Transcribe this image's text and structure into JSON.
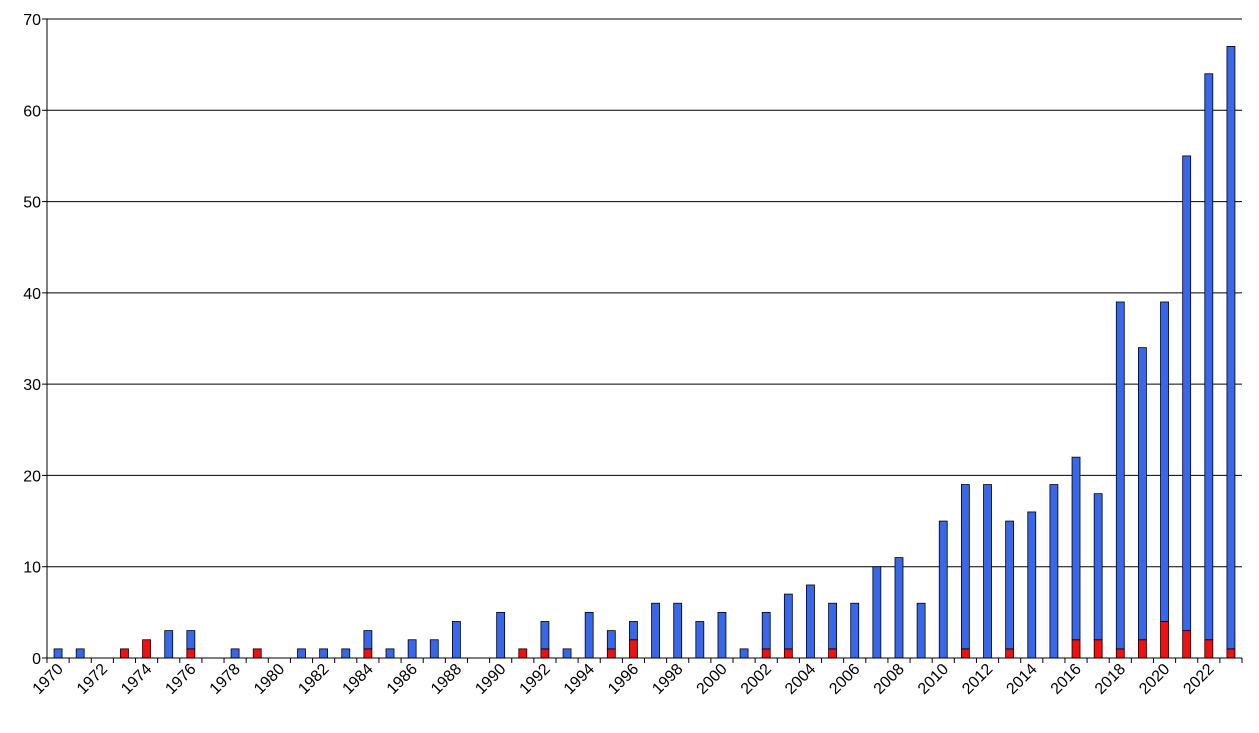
{
  "chart_data": {
    "type": "bar",
    "stacked": true,
    "grid": true,
    "ylim": [
      0,
      70
    ],
    "y_ticks": [
      "0",
      "10",
      "20",
      "30",
      "40",
      "50",
      "60",
      "70"
    ],
    "x_ticks": [
      "1970",
      "1972",
      "1974",
      "1976",
      "1978",
      "1980",
      "1982",
      "1984",
      "1986",
      "1988",
      "1990",
      "1992",
      "1994",
      "1996",
      "1998",
      "2000",
      "2002",
      "2004",
      "2006",
      "2008",
      "2010",
      "2012",
      "2014",
      "2016",
      "2018",
      "2020",
      "2022"
    ],
    "categories": [
      1970,
      1971,
      1972,
      1973,
      1974,
      1975,
      1976,
      1977,
      1978,
      1979,
      1980,
      1981,
      1982,
      1983,
      1984,
      1985,
      1986,
      1987,
      1988,
      1989,
      1990,
      1991,
      1992,
      1993,
      1994,
      1995,
      1996,
      1997,
      1998,
      1999,
      2000,
      2001,
      2002,
      2003,
      2004,
      2005,
      2006,
      2007,
      2008,
      2009,
      2010,
      2011,
      2012,
      2013,
      2014,
      2015,
      2016,
      2017,
      2018,
      2019,
      2020,
      2021,
      2022,
      2023
    ],
    "series": [
      {
        "color": "#ee1111",
        "values": [
          0,
          0,
          0,
          1,
          2,
          0,
          1,
          0,
          0,
          1,
          0,
          0,
          0,
          0,
          1,
          0,
          0,
          0,
          0,
          0,
          0,
          1,
          1,
          0,
          0,
          1,
          2,
          0,
          0,
          0,
          0,
          0,
          1,
          1,
          0,
          1,
          0,
          0,
          0,
          0,
          0,
          1,
          0,
          1,
          0,
          0,
          2,
          2,
          1,
          2,
          4,
          3,
          2,
          1
        ]
      },
      {
        "color": "#3a66e8",
        "values": [
          1,
          1,
          0,
          0,
          0,
          3,
          2,
          0,
          1,
          0,
          0,
          1,
          1,
          1,
          2,
          1,
          2,
          2,
          4,
          0,
          5,
          0,
          3,
          1,
          5,
          2,
          2,
          6,
          6,
          4,
          5,
          1,
          4,
          6,
          8,
          5,
          6,
          10,
          11,
          6,
          15,
          18,
          19,
          14,
          16,
          19,
          20,
          16,
          38,
          32,
          35,
          52,
          62,
          66
        ]
      }
    ]
  }
}
